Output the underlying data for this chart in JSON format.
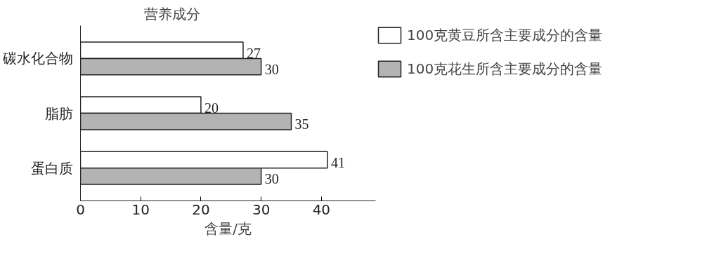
{
  "chart_data": {
    "type": "bar",
    "orientation": "horizontal",
    "ylabel": "营养成分",
    "xlabel": "含量/克",
    "categories": [
      "碳水化合物",
      "脂肪",
      "蛋白质"
    ],
    "series": [
      {
        "name": "100克黄豆所含主要成分的含量",
        "color": "#ffffff",
        "values": [
          27,
          20,
          41
        ]
      },
      {
        "name": "100克花生所含主要成分的含量",
        "color": "#b3b3b3",
        "values": [
          30,
          35,
          30
        ]
      }
    ],
    "xlim": [
      0,
      49
    ],
    "xticks": [
      0,
      10,
      20,
      30,
      40
    ],
    "data_labels": true,
    "grid": false,
    "legend": "top right"
  }
}
